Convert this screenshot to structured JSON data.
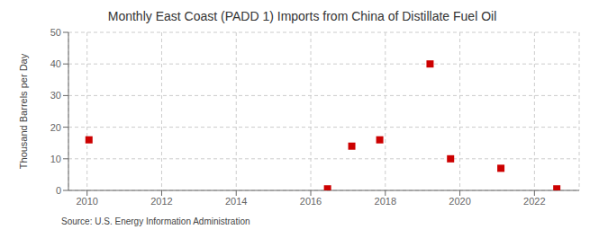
{
  "chart_data": {
    "type": "scatter",
    "title": "Monthly East Coast (PADD 1) Imports from China of Distillate Fuel Oil",
    "ylabel": "Thousand Barrels per Day",
    "annotations": [
      "Source: U.S. Energy Information Administration"
    ],
    "x": [
      2010.05,
      2016.45,
      2017.1,
      2017.85,
      2019.2,
      2019.75,
      2021.1,
      2022.6
    ],
    "values": [
      16,
      0.5,
      14,
      16,
      40,
      10,
      7,
      0.5
    ],
    "color": "#cc0000",
    "marker": "square",
    "xlim": [
      2009.5,
      2023.2
    ],
    "ylim": [
      0,
      50
    ],
    "xticks": [
      2010,
      2012,
      2014,
      2016,
      2018,
      2020,
      2022
    ],
    "yticks": [
      0,
      10,
      20,
      30,
      40,
      50
    ],
    "grid": true
  }
}
